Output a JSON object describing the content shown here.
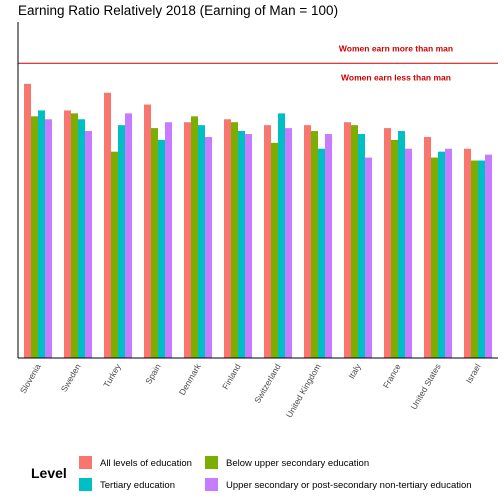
{
  "chart_data": {
    "type": "bar",
    "title": "Earning Ratio Relatively 2018 (Earning of Man = 100)",
    "xlabel": "",
    "ylabel": "",
    "ylim": [
      0,
      114
    ],
    "grid": false,
    "legend_position": "bottom",
    "legend_title": "Level",
    "categories": [
      "Slovenia",
      "Sweden",
      "Turkey",
      "Spain",
      "Denmark",
      "Finland",
      "Switzerland",
      "United Kingdom",
      "Italy",
      "France",
      "United States",
      "Israel"
    ],
    "series": [
      {
        "name": "All levels of education",
        "color": "#F8766D",
        "values": [
          93,
          84,
          90,
          86,
          80,
          81,
          79,
          79,
          80,
          78,
          75,
          71
        ]
      },
      {
        "name": "Below upper secondary education",
        "color": "#7CAE00",
        "values": [
          82,
          83,
          70,
          78,
          82,
          80,
          73,
          77,
          79,
          74,
          68,
          67
        ]
      },
      {
        "name": "Tertiary education",
        "color": "#00BFC4",
        "values": [
          84,
          81,
          79,
          74,
          79,
          77,
          83,
          71,
          76,
          77,
          70,
          67
        ]
      },
      {
        "name": "Upper secondary or post-secondary non-tertiary education",
        "color": "#C77CFF",
        "values": [
          81,
          77,
          83,
          80,
          75,
          76,
          78,
          76,
          68,
          71,
          71,
          69
        ]
      }
    ],
    "reference_line": {
      "value": 100,
      "color": "#CC0000"
    },
    "annotations": [
      "Women earn more than man",
      "Women earn less than man"
    ]
  }
}
